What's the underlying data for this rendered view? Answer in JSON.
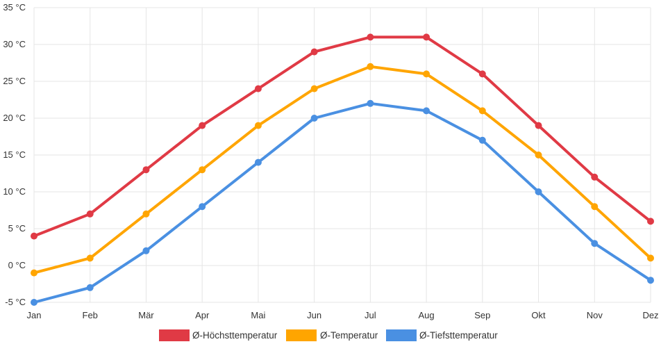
{
  "chart_data": {
    "type": "line",
    "title": "",
    "xlabel": "",
    "ylabel": "",
    "categories": [
      "Jan",
      "Feb",
      "Mär",
      "Apr",
      "Mai",
      "Jun",
      "Jul",
      "Aug",
      "Sep",
      "Okt",
      "Nov",
      "Dez"
    ],
    "y_unit": "°C",
    "ylim": [
      -5,
      35
    ],
    "y_ticks": [
      -5,
      0,
      5,
      10,
      15,
      20,
      25,
      30,
      35
    ],
    "y_tick_labels": [
      "-5 °C",
      "0 °C",
      "5 °C",
      "10 °C",
      "15 °C",
      "20 °C",
      "25 °C",
      "30 °C",
      "35 °C"
    ],
    "grid": true,
    "legend_position": "bottom",
    "series": [
      {
        "name": "Ø-Höchsttemperatur",
        "color": "#e03a45",
        "values": [
          4,
          7,
          13,
          19,
          24,
          29,
          31,
          31,
          26,
          19,
          12,
          6
        ]
      },
      {
        "name": "Ø-Temperatur",
        "color": "#ffa500",
        "values": [
          -1,
          1,
          7,
          13,
          19,
          24,
          27,
          26,
          21,
          15,
          8,
          1
        ]
      },
      {
        "name": "Ø-Tiefsttemperatur",
        "color": "#4a90e2",
        "values": [
          -5,
          -3,
          2,
          8,
          14,
          20,
          22,
          21,
          17,
          10,
          3,
          -2
        ]
      }
    ]
  }
}
